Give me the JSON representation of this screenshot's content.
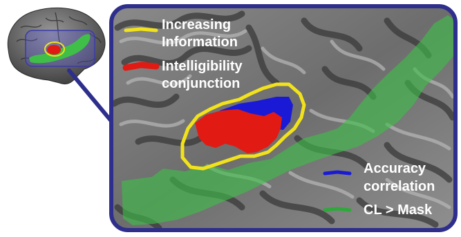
{
  "colors": {
    "frame": "#2e2e8c",
    "increasing_information": "#f2e21c",
    "intelligibility_conjunction": "#e11a14",
    "accuracy_correlation": "#1a1ad6",
    "cl_mask": "#3fbf48",
    "label_text": "#ffffff"
  },
  "legend": {
    "increasing_information": {
      "line1": "Increasing",
      "line2": "Information",
      "icon": "yellow-outline-swatch"
    },
    "intelligibility_conjunction": {
      "line1": "Intelligibility",
      "line2": "conjunction",
      "icon": "red-swatch"
    },
    "accuracy_correlation": {
      "line1": "Accuracy",
      "line2": "correlation",
      "icon": "blue-swatch"
    },
    "cl_mask": {
      "line1": "CL > Mask",
      "icon": "green-swatch"
    }
  }
}
